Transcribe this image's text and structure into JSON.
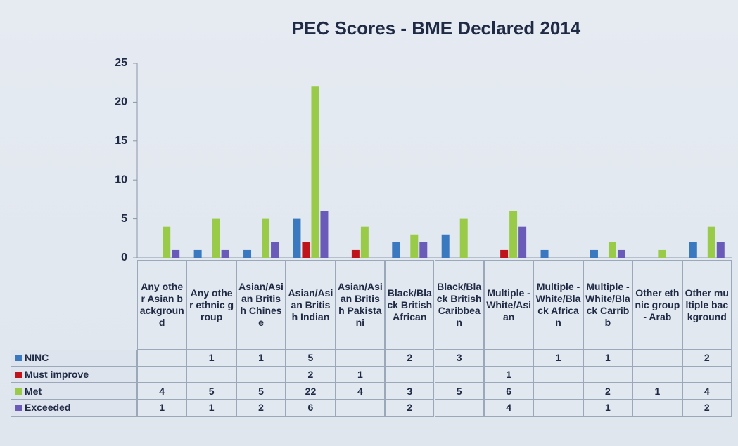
{
  "chart_data": {
    "type": "bar",
    "title": "PEC Scores - BME Declared 2014",
    "categories": [
      "Any other Asian background",
      "Any other ethnic group",
      "Asian/Asian British Chinese",
      "Asian/Asian British Indian",
      "Asian/Asian British Pakistani",
      "Black/Black British African",
      "Black/Black British Caribbean",
      "Multiple - White/Asian",
      "Multiple - White/Black African",
      "Multiple - White/Black Carribb",
      "Other ethnic group - Arab",
      "Other multiple background"
    ],
    "series": [
      {
        "name": "NINC",
        "color": "#3a78c0",
        "values": [
          null,
          1,
          1,
          5,
          null,
          2,
          3,
          null,
          1,
          1,
          null,
          2
        ]
      },
      {
        "name": "Must improve",
        "color": "#c0141c",
        "values": [
          null,
          null,
          null,
          2,
          1,
          null,
          null,
          1,
          null,
          null,
          null,
          null
        ]
      },
      {
        "name": "Met",
        "color": "#9acb48",
        "values": [
          4,
          5,
          5,
          22,
          4,
          3,
          5,
          6,
          null,
          2,
          1,
          4
        ]
      },
      {
        "name": "Exceeded",
        "color": "#6a5bb8",
        "values": [
          1,
          1,
          2,
          6,
          null,
          2,
          null,
          4,
          null,
          1,
          null,
          2
        ]
      }
    ],
    "ylim": [
      0,
      25
    ],
    "yticks": [
      0,
      5,
      10,
      15,
      20,
      25
    ],
    "grid": false
  }
}
